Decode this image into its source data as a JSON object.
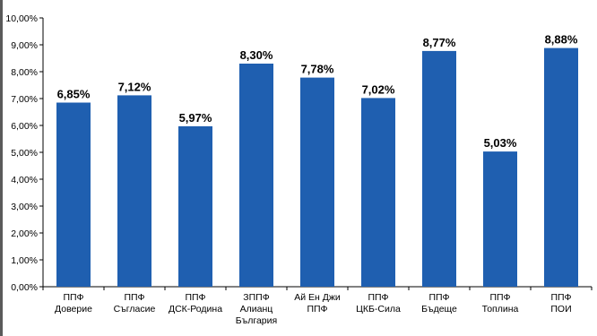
{
  "chart_data": {
    "type": "bar",
    "title": "",
    "xlabel": "",
    "ylabel": "",
    "ylim": [
      0,
      10
    ],
    "y_ticks": [
      0,
      1,
      2,
      3,
      4,
      5,
      6,
      7,
      8,
      9,
      10
    ],
    "y_tick_labels": [
      "0,00%",
      "1,00%",
      "2,00%",
      "3,00%",
      "4,00%",
      "5,00%",
      "6,00%",
      "7,00%",
      "8,00%",
      "9,00%",
      "10,00%"
    ],
    "grid": false,
    "bar_color": "#1f5fb0",
    "categories": [
      [
        "ППФ",
        "Доверие"
      ],
      [
        "ППФ",
        "Съгласие"
      ],
      [
        "ППФ",
        "ДСК-Родина"
      ],
      [
        "ЗППФ",
        "Алианц",
        "България"
      ],
      [
        "Ай  Ен  Джи",
        "ППФ"
      ],
      [
        "ППФ",
        "ЦКБ-Сила"
      ],
      [
        "ППФ",
        "Бъдеще"
      ],
      [
        "ППФ",
        "Топлина"
      ],
      [
        "ППФ",
        "ПОИ"
      ]
    ],
    "values": [
      6.85,
      7.12,
      5.97,
      8.3,
      7.78,
      7.02,
      8.77,
      5.03,
      8.88
    ],
    "value_labels": [
      "6,85%",
      "7,12%",
      "5,97%",
      "8,30%",
      "7,78%",
      "7,02%",
      "8,77%",
      "5,03%",
      "8,88%"
    ]
  }
}
